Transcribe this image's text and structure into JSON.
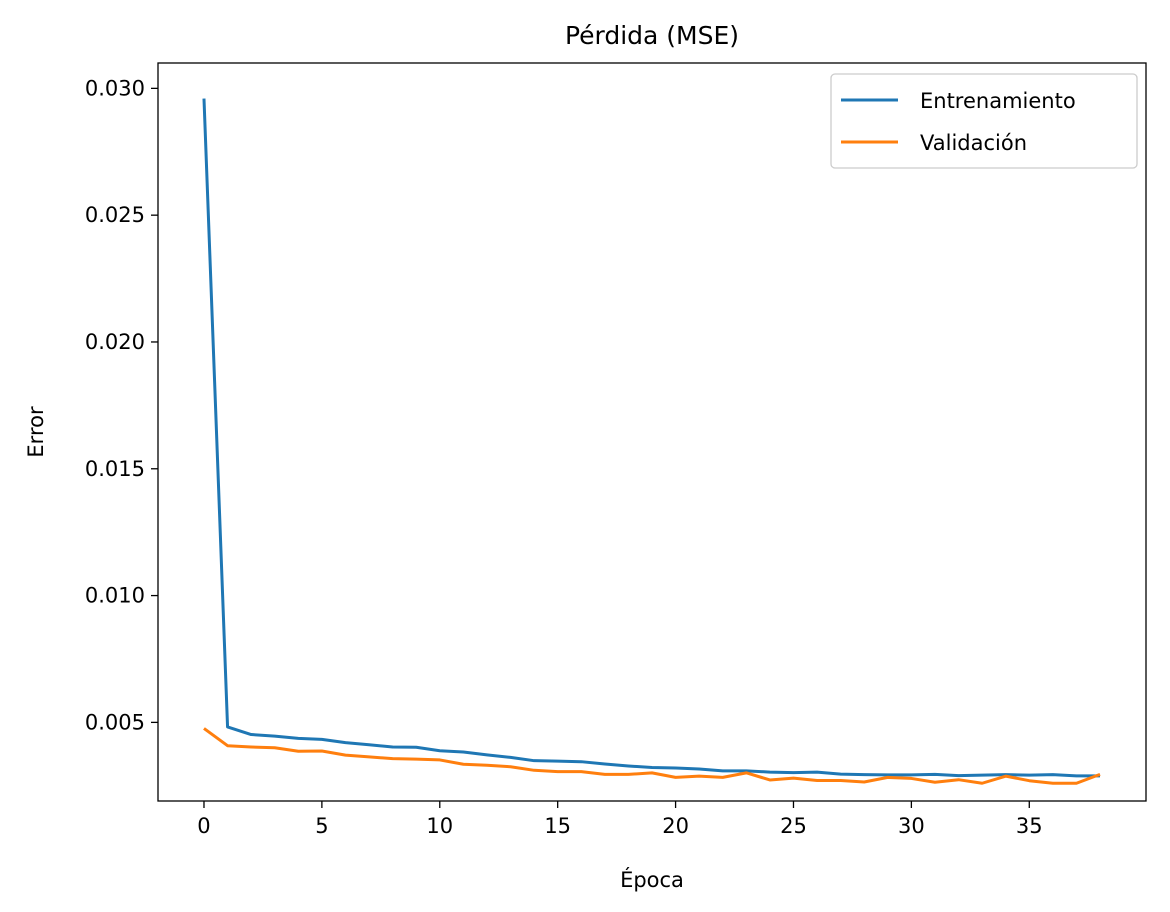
{
  "chart_data": {
    "type": "line",
    "title": "Pérdida (MSE)",
    "xlabel": "Época",
    "ylabel": "Error",
    "xlim": [
      -1.95,
      39.95
    ],
    "ylim": [
      0.0019,
      0.031
    ],
    "xticks": [
      0,
      5,
      10,
      15,
      20,
      25,
      30,
      35
    ],
    "xtick_labels": [
      "0",
      "5",
      "10",
      "15",
      "20",
      "25",
      "30",
      "35"
    ],
    "yticks": [
      0.005,
      0.01,
      0.015,
      0.02,
      0.025,
      0.03
    ],
    "ytick_labels": [
      "0.005",
      "0.010",
      "0.015",
      "0.020",
      "0.025",
      "0.030"
    ],
    "grid": false,
    "legend_position": "upper right",
    "x": [
      0,
      1,
      2,
      3,
      4,
      5,
      6,
      7,
      8,
      9,
      10,
      11,
      12,
      13,
      14,
      15,
      16,
      17,
      18,
      19,
      20,
      21,
      22,
      23,
      24,
      25,
      26,
      27,
      28,
      29,
      30,
      31,
      32,
      33,
      34,
      35,
      36,
      37,
      38
    ],
    "series": [
      {
        "name": "Entrenamiento",
        "color": "#1f77b4",
        "values": [
          0.0296,
          0.00482,
          0.00452,
          0.00446,
          0.00437,
          0.00433,
          0.0042,
          0.00412,
          0.00403,
          0.00402,
          0.00388,
          0.00383,
          0.00372,
          0.00362,
          0.00349,
          0.00347,
          0.00345,
          0.00336,
          0.00328,
          0.00322,
          0.0032,
          0.00316,
          0.00309,
          0.00309,
          0.00304,
          0.00302,
          0.00304,
          0.00296,
          0.00294,
          0.00293,
          0.00293,
          0.00295,
          0.0029,
          0.00292,
          0.00294,
          0.00292,
          0.00294,
          0.00289,
          0.00289
        ]
      },
      {
        "name": "Validación",
        "color": "#ff7f0e",
        "values": [
          0.00476,
          0.00408,
          0.00403,
          0.004,
          0.00386,
          0.00387,
          0.00371,
          0.00364,
          0.00357,
          0.00355,
          0.00352,
          0.00335,
          0.00331,
          0.00325,
          0.00311,
          0.00306,
          0.00306,
          0.00295,
          0.00295,
          0.00301,
          0.00283,
          0.00288,
          0.00283,
          0.00301,
          0.00273,
          0.0028,
          0.00271,
          0.00271,
          0.00265,
          0.00283,
          0.00279,
          0.00264,
          0.00274,
          0.0026,
          0.00288,
          0.0027,
          0.0026,
          0.0026,
          0.00295
        ]
      }
    ]
  }
}
